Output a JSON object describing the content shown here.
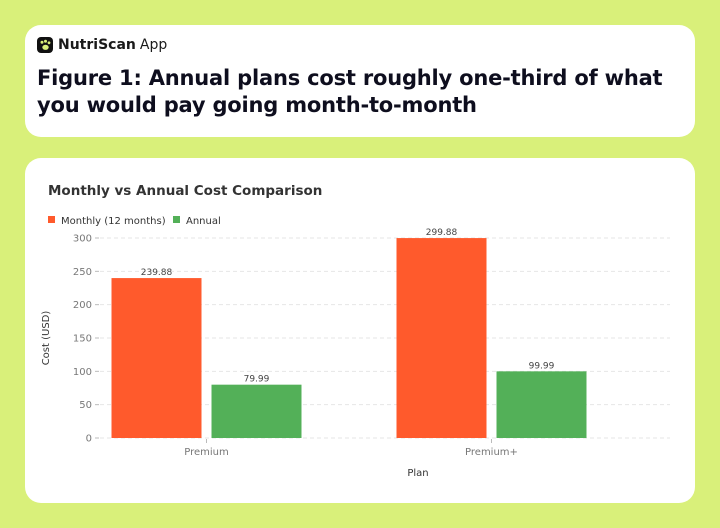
{
  "brand": {
    "name": "NutriScan",
    "suffix": "App",
    "icon": "paw-icon",
    "colors": {
      "accent": "#111111",
      "background": "#d9f07a",
      "card": "#ffffff"
    }
  },
  "headline": "Figure 1: Annual plans cost roughly one-third of what you would pay going month-to-month",
  "chart_data": {
    "type": "bar",
    "title": "Monthly vs Annual Cost Comparison",
    "xlabel": "Plan",
    "ylabel": "Cost (USD)",
    "categories": [
      "Premium",
      "Premium+"
    ],
    "series": [
      {
        "name": "Monthly (12 months)",
        "color": "#ff5a2c",
        "values": [
          239.88,
          299.88
        ],
        "labels": [
          "239.88",
          "299.88"
        ]
      },
      {
        "name": "Annual",
        "color": "#53b058",
        "values": [
          79.99,
          99.99
        ],
        "labels": [
          "79.99",
          "99.99"
        ]
      }
    ],
    "ylim": [
      0,
      300
    ],
    "yticks": [
      0,
      50,
      100,
      150,
      200,
      250,
      300
    ],
    "ytick_labels": [
      "0",
      "50",
      "100",
      "150",
      "200",
      "250",
      "300"
    ],
    "grid": true,
    "legend_position": "top-left"
  }
}
